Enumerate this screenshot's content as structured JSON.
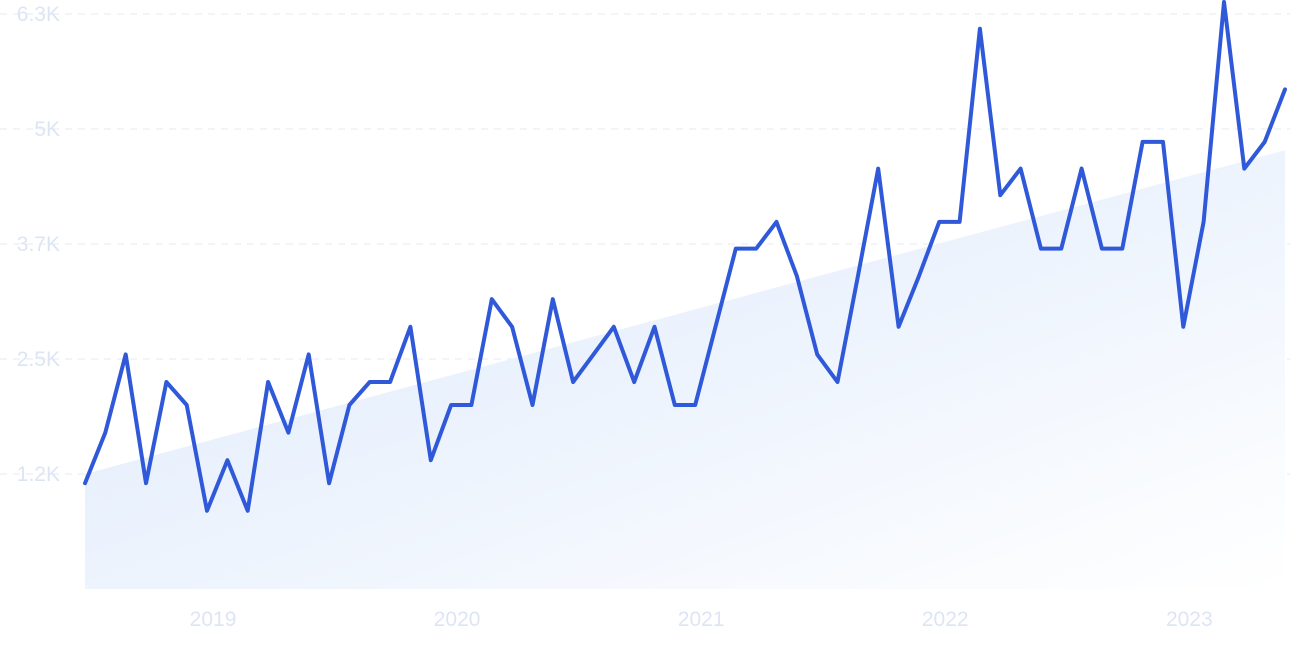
{
  "chart_data": {
    "type": "line",
    "title": "",
    "xlabel": "",
    "ylabel": "",
    "x": [
      "2018-07",
      "2018-08",
      "2018-09",
      "2018-10",
      "2018-11",
      "2018-12",
      "2019-01",
      "2019-02",
      "2019-03",
      "2019-04",
      "2019-05",
      "2019-06",
      "2019-07",
      "2019-08",
      "2019-09",
      "2019-10",
      "2019-11",
      "2019-12",
      "2020-01",
      "2020-02",
      "2020-03",
      "2020-04",
      "2020-05",
      "2020-06",
      "2020-07",
      "2020-08",
      "2020-09",
      "2020-10",
      "2020-11",
      "2020-12",
      "2021-01",
      "2021-02",
      "2021-03",
      "2021-04",
      "2021-05",
      "2021-06",
      "2021-07",
      "2021-08",
      "2021-09",
      "2021-10",
      "2021-11",
      "2021-12",
      "2022-01",
      "2022-02",
      "2022-03",
      "2022-04",
      "2022-05",
      "2022-06",
      "2022-07",
      "2022-08",
      "2022-09",
      "2022-10",
      "2022-11",
      "2022-12",
      "2023-01",
      "2023-02",
      "2023-03",
      "2023-04",
      "2023-05",
      "2023-06"
    ],
    "series": [
      {
        "values": [
          1150,
          1700,
          2550,
          1150,
          2250,
          2000,
          850,
          1400,
          850,
          2250,
          1700,
          2550,
          1150,
          2000,
          2250,
          2250,
          2850,
          1400,
          2000,
          2000,
          3150,
          2850,
          2000,
          3150,
          2250,
          2550,
          2850,
          2250,
          2850,
          2000,
          2000,
          2850,
          3700,
          3700,
          3990,
          3400,
          2550,
          2250,
          3400,
          4570,
          2850,
          3400,
          3990,
          3990,
          6090,
          4280,
          4570,
          3700,
          3700,
          4570,
          3700,
          3700,
          4860,
          4860,
          2850,
          3990,
          6380,
          4570,
          4860,
          5430
        ]
      }
    ],
    "trend": {
      "start": 1250,
      "end": 4770
    },
    "x_ticks": [
      {
        "label": "2019",
        "x": "2019-01"
      },
      {
        "label": "2020",
        "x": "2020-01"
      },
      {
        "label": "2021",
        "x": "2021-01"
      },
      {
        "label": "2022",
        "x": "2022-01"
      },
      {
        "label": "2023",
        "x": "2023-01"
      }
    ],
    "y_ticks": [
      {
        "label": "1.2K",
        "value": 1250
      },
      {
        "label": "2.5K",
        "value": 2500
      },
      {
        "label": "3.7K",
        "value": 3750
      },
      {
        "label": "5K",
        "value": 5000
      },
      {
        "label": "6.3K",
        "value": 6250
      }
    ],
    "ylim": [
      0,
      6250
    ],
    "grid": true,
    "legend": "none",
    "colors": {
      "line": "#2f59d9",
      "trend_fill_top": "#dbe8fb",
      "trend_fill_bottom": "#ffffff",
      "grid": "#e4e9f4",
      "tick_text": "#dde5f5"
    }
  }
}
